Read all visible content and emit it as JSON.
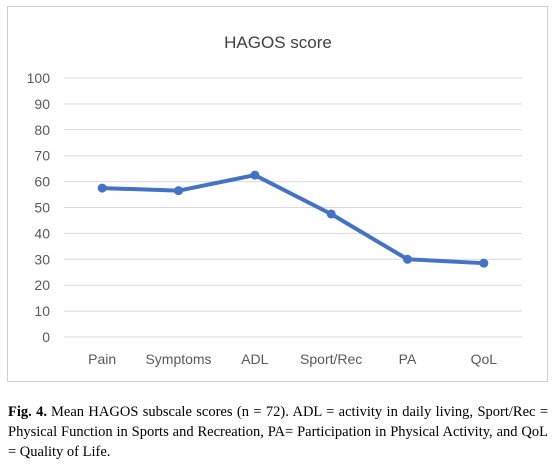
{
  "chart_data": {
    "type": "line",
    "title": "HAGOS score",
    "xlabel": "",
    "ylabel": "",
    "categories": [
      "Pain",
      "Symptoms",
      "ADL",
      "Sport/Rec",
      "PA",
      "QoL"
    ],
    "series": [
      {
        "values": [
          57.5,
          56.5,
          62.5,
          47.5,
          30,
          28.5
        ]
      }
    ],
    "ylim": [
      0,
      100
    ],
    "yticks": [
      0,
      10,
      20,
      30,
      40,
      50,
      60,
      70,
      80,
      90,
      100
    ],
    "grid": true,
    "legend": "none",
    "line_color": "#4472c4",
    "grid_color": "#d9d9d9",
    "text_color": "#595959"
  },
  "caption": {
    "label": "Fig. 4.",
    "text": "Mean HAGOS subscale scores (n = 72). ADL = activity in daily living, Sport/Rec = Physical Function in Sports and Recreation, PA= Participation in Physical Activity, and QoL = Quality of Life."
  }
}
